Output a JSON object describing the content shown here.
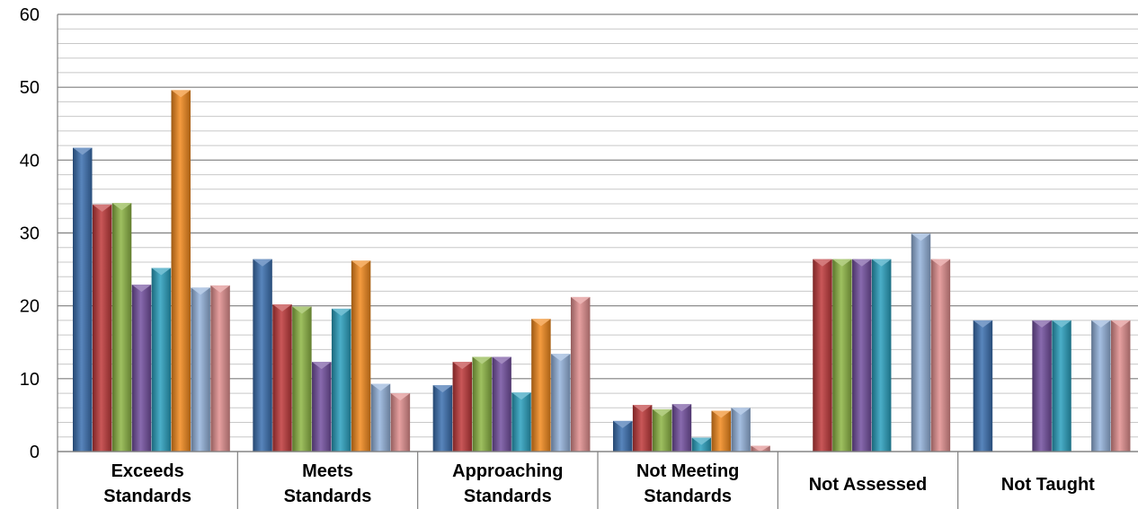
{
  "chart_data": {
    "type": "bar",
    "title": "",
    "xlabel": "",
    "ylabel": "",
    "ylim": [
      0,
      60
    ],
    "yticks": [
      0,
      10,
      20,
      30,
      40,
      50,
      60
    ],
    "grid": true,
    "legend": "none",
    "categories": [
      [
        "Exceeds",
        "Standards"
      ],
      [
        "Meets",
        "Standards"
      ],
      [
        "Approaching",
        "Standards"
      ],
      [
        "Not Meeting",
        "Standards"
      ],
      [
        "Not Assessed"
      ],
      [
        "Not Taught"
      ]
    ],
    "series": [
      {
        "color": "#3a6fb0",
        "values": [
          41.7,
          26.4,
          9.1,
          4.2,
          0,
          18.0
        ]
      },
      {
        "color": "#c0393b",
        "values": [
          33.9,
          20.2,
          12.3,
          6.4,
          26.4,
          0
        ]
      },
      {
        "color": "#8db544",
        "values": [
          34.1,
          19.9,
          13.0,
          5.8,
          26.4,
          0
        ]
      },
      {
        "color": "#7350a0",
        "values": [
          22.9,
          12.3,
          13.0,
          6.5,
          26.4,
          18.0
        ]
      },
      {
        "color": "#2aa0be",
        "values": [
          25.2,
          19.6,
          8.1,
          1.9,
          26.4,
          18.0
        ]
      },
      {
        "color": "#f2891d",
        "values": [
          49.6,
          26.2,
          18.2,
          5.6,
          0,
          0
        ]
      },
      {
        "color": "#94b2dc",
        "values": [
          22.5,
          9.3,
          13.4,
          6.0,
          29.9,
          18.0
        ]
      },
      {
        "color": "#e28f8f",
        "values": [
          22.8,
          8.0,
          21.2,
          0.8,
          26.4,
          18.0
        ]
      }
    ]
  }
}
